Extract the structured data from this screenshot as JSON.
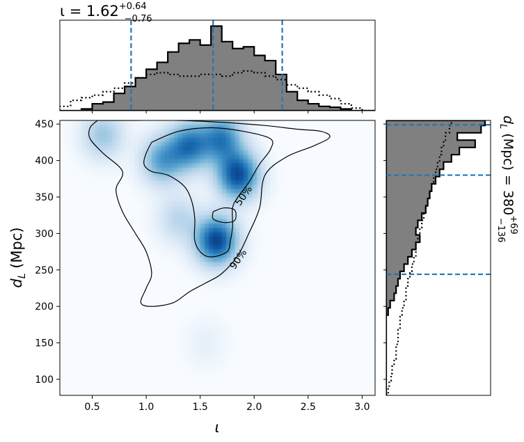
{
  "chart_data": [
    {
      "type": "histogram",
      "panel": "top-marginal",
      "title": "ι = 1.62",
      "title_sup": "+0.64",
      "title_sub": "−0.76",
      "xlim": [
        0.2,
        3.12
      ],
      "bin_edges": [
        0.2,
        0.3,
        0.4,
        0.5,
        0.6,
        0.7,
        0.8,
        0.9,
        1.0,
        1.1,
        1.2,
        1.3,
        1.4,
        1.5,
        1.6,
        1.7,
        1.8,
        1.9,
        2.0,
        2.1,
        2.2,
        2.3,
        2.4,
        2.5,
        2.6,
        2.7,
        2.8,
        2.9,
        3.0,
        3.12
      ],
      "series": [
        {
          "style": "filled-step",
          "values": [
            0.0,
            0.0,
            0.02,
            0.08,
            0.1,
            0.2,
            0.28,
            0.38,
            0.48,
            0.56,
            0.68,
            0.78,
            0.82,
            0.76,
            0.98,
            0.8,
            0.72,
            0.74,
            0.64,
            0.58,
            0.42,
            0.22,
            0.12,
            0.08,
            0.05,
            0.04,
            0.02,
            0.0,
            0.0
          ]
        },
        {
          "style": "dotted-step",
          "values": [
            0.05,
            0.12,
            0.15,
            0.18,
            0.22,
            0.26,
            0.32,
            0.38,
            0.42,
            0.44,
            0.42,
            0.4,
            0.4,
            0.42,
            0.42,
            0.4,
            0.44,
            0.46,
            0.44,
            0.4,
            0.36,
            0.3,
            0.26,
            0.22,
            0.18,
            0.14,
            0.08,
            0.03,
            0.0
          ]
        }
      ],
      "vlines": [
        0.86,
        1.62,
        2.26
      ],
      "vline_color": "#1f77b4"
    },
    {
      "type": "heatmap",
      "panel": "joint",
      "xlabel": "ι",
      "ylabel": "d_L (Mpc)",
      "ylabel_base": "d",
      "ylabel_sub": "L",
      "ylabel_rest": " (Mpc)",
      "xlim": [
        0.2,
        3.12
      ],
      "ylim": [
        78,
        455
      ],
      "xticks": [
        "0.5",
        "1.0",
        "1.5",
        "2.0",
        "2.5",
        "3.0"
      ],
      "yticks": [
        "100",
        "150",
        "200",
        "250",
        "300",
        "350",
        "400",
        "450"
      ],
      "colormap": "Blues",
      "density_peaks": [
        {
          "x": 1.65,
          "y": 290,
          "weight": 1.0
        },
        {
          "x": 1.85,
          "y": 380,
          "weight": 0.95
        },
        {
          "x": 1.4,
          "y": 420,
          "weight": 0.75
        },
        {
          "x": 1.7,
          "y": 430,
          "weight": 0.7
        },
        {
          "x": 1.15,
          "y": 400,
          "weight": 0.55
        },
        {
          "x": 0.6,
          "y": 435,
          "weight": 0.35
        },
        {
          "x": 1.3,
          "y": 320,
          "weight": 0.25
        },
        {
          "x": 1.55,
          "y": 150,
          "weight": 0.06
        }
      ],
      "contours": [
        {
          "label": "90%",
          "label_pos": [
            1.85,
            265
          ],
          "points": [
            [
              0.55,
              455
            ],
            [
              0.85,
              455
            ],
            [
              1.3,
              455
            ],
            [
              1.75,
              452
            ],
            [
              2.1,
              448
            ],
            [
              2.4,
              443
            ],
            [
              2.62,
              440
            ],
            [
              2.7,
              432
            ],
            [
              2.55,
              420
            ],
            [
              2.3,
              405
            ],
            [
              2.1,
              380
            ],
            [
              2.05,
              335
            ],
            [
              1.95,
              300
            ],
            [
              1.85,
              270
            ],
            [
              1.7,
              245
            ],
            [
              1.55,
              232
            ],
            [
              1.4,
              220
            ],
            [
              1.25,
              205
            ],
            [
              1.05,
              200
            ],
            [
              0.95,
              205
            ],
            [
              1.0,
              225
            ],
            [
              1.05,
              245
            ],
            [
              1.0,
              275
            ],
            [
              0.9,
              300
            ],
            [
              0.78,
              330
            ],
            [
              0.72,
              360
            ],
            [
              0.78,
              385
            ],
            [
              0.6,
              410
            ],
            [
              0.48,
              430
            ],
            [
              0.48,
              445
            ],
            [
              0.55,
              455
            ]
          ]
        },
        {
          "label": "50%",
          "label_pos": [
            1.9,
            352
          ],
          "points": [
            [
              1.05,
              425
            ],
            [
              1.3,
              440
            ],
            [
              1.6,
              445
            ],
            [
              1.9,
              440
            ],
            [
              2.15,
              430
            ],
            [
              2.15,
              415
            ],
            [
              2.05,
              395
            ],
            [
              1.95,
              370
            ],
            [
              1.85,
              350
            ],
            [
              1.8,
              335
            ],
            [
              1.8,
              310
            ],
            [
              1.78,
              290
            ],
            [
              1.75,
              275
            ],
            [
              1.62,
              268
            ],
            [
              1.52,
              272
            ],
            [
              1.45,
              290
            ],
            [
              1.45,
              320
            ],
            [
              1.42,
              345
            ],
            [
              1.35,
              365
            ],
            [
              1.2,
              380
            ],
            [
              1.05,
              385
            ],
            [
              0.98,
              395
            ],
            [
              1.0,
              410
            ],
            [
              1.05,
              425
            ]
          ]
        },
        {
          "label": "",
          "points": [
            [
              1.62,
              330
            ],
            [
              1.72,
              335
            ],
            [
              1.82,
              332
            ],
            [
              1.82,
              318
            ],
            [
              1.72,
              315
            ],
            [
              1.62,
              320
            ],
            [
              1.62,
              330
            ]
          ]
        }
      ]
    },
    {
      "type": "histogram",
      "panel": "right-marginal",
      "orientation": "horizontal",
      "ylabel": "d_L (Mpc) = 380",
      "ylabel_base": "d",
      "ylabel_sub": "L",
      "ylabel_rest": " (Mpc) = 380",
      "ylabel_sup": "+69",
      "ylabel_subscript": "−136",
      "ylim": [
        78,
        455
      ],
      "bin_edges": [
        78,
        88,
        98,
        108,
        118,
        128,
        138,
        148,
        158,
        168,
        178,
        188,
        198,
        208,
        218,
        228,
        238,
        248,
        258,
        268,
        278,
        288,
        298,
        308,
        318,
        328,
        338,
        348,
        358,
        368,
        378,
        388,
        398,
        408,
        418,
        428,
        438,
        448,
        455
      ],
      "series": [
        {
          "style": "filled-step",
          "values": [
            0.0,
            0.0,
            0.0,
            0.0,
            0.0,
            0.0,
            0.0,
            0.0,
            0.0,
            0.0,
            0.0,
            0.02,
            0.04,
            0.08,
            0.1,
            0.12,
            0.14,
            0.18,
            0.22,
            0.26,
            0.3,
            0.34,
            0.3,
            0.32,
            0.36,
            0.4,
            0.42,
            0.44,
            0.46,
            0.5,
            0.54,
            0.58,
            0.66,
            0.74,
            0.9,
            0.72,
            0.96,
            1.0
          ]
        },
        {
          "style": "dotted-step",
          "values": [
            0.02,
            0.03,
            0.05,
            0.06,
            0.08,
            0.1,
            0.1,
            0.12,
            0.12,
            0.14,
            0.14,
            0.16,
            0.18,
            0.2,
            0.2,
            0.22,
            0.24,
            0.26,
            0.28,
            0.3,
            0.3,
            0.32,
            0.34,
            0.36,
            0.38,
            0.4,
            0.42,
            0.44,
            0.46,
            0.48,
            0.5,
            0.52,
            0.54,
            0.56,
            0.58,
            0.6,
            0.64,
            0.66
          ]
        }
      ],
      "hlines": [
        244,
        380,
        449
      ],
      "hline_color": "#1f77b4"
    }
  ]
}
